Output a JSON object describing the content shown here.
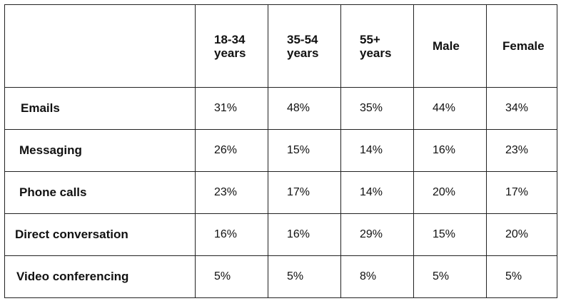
{
  "chart_data": {
    "type": "table",
    "columns": [
      "",
      "18-34 years",
      "35-54 years",
      "55+ years",
      "Male",
      "Female"
    ],
    "header_lines": [
      [],
      [
        "18-34",
        "years"
      ],
      [
        "35-54",
        "years"
      ],
      [
        "55+",
        "years"
      ],
      [
        "Male"
      ],
      [
        "Female"
      ]
    ],
    "rows": [
      {
        "label": "Emails",
        "values": [
          "31%",
          "48%",
          "35%",
          "44%",
          "34%"
        ]
      },
      {
        "label": "Messaging",
        "values": [
          "26%",
          "15%",
          "14%",
          "16%",
          "23%"
        ]
      },
      {
        "label": "Phone calls",
        "values": [
          "23%",
          "17%",
          "14%",
          "20%",
          "17%"
        ]
      },
      {
        "label": "Direct conversation",
        "values": [
          "16%",
          "16%",
          "29%",
          "15%",
          "20%"
        ]
      },
      {
        "label": "Video conferencing",
        "values": [
          "5%",
          "5%",
          "8%",
          "5%",
          "5%"
        ]
      }
    ]
  }
}
